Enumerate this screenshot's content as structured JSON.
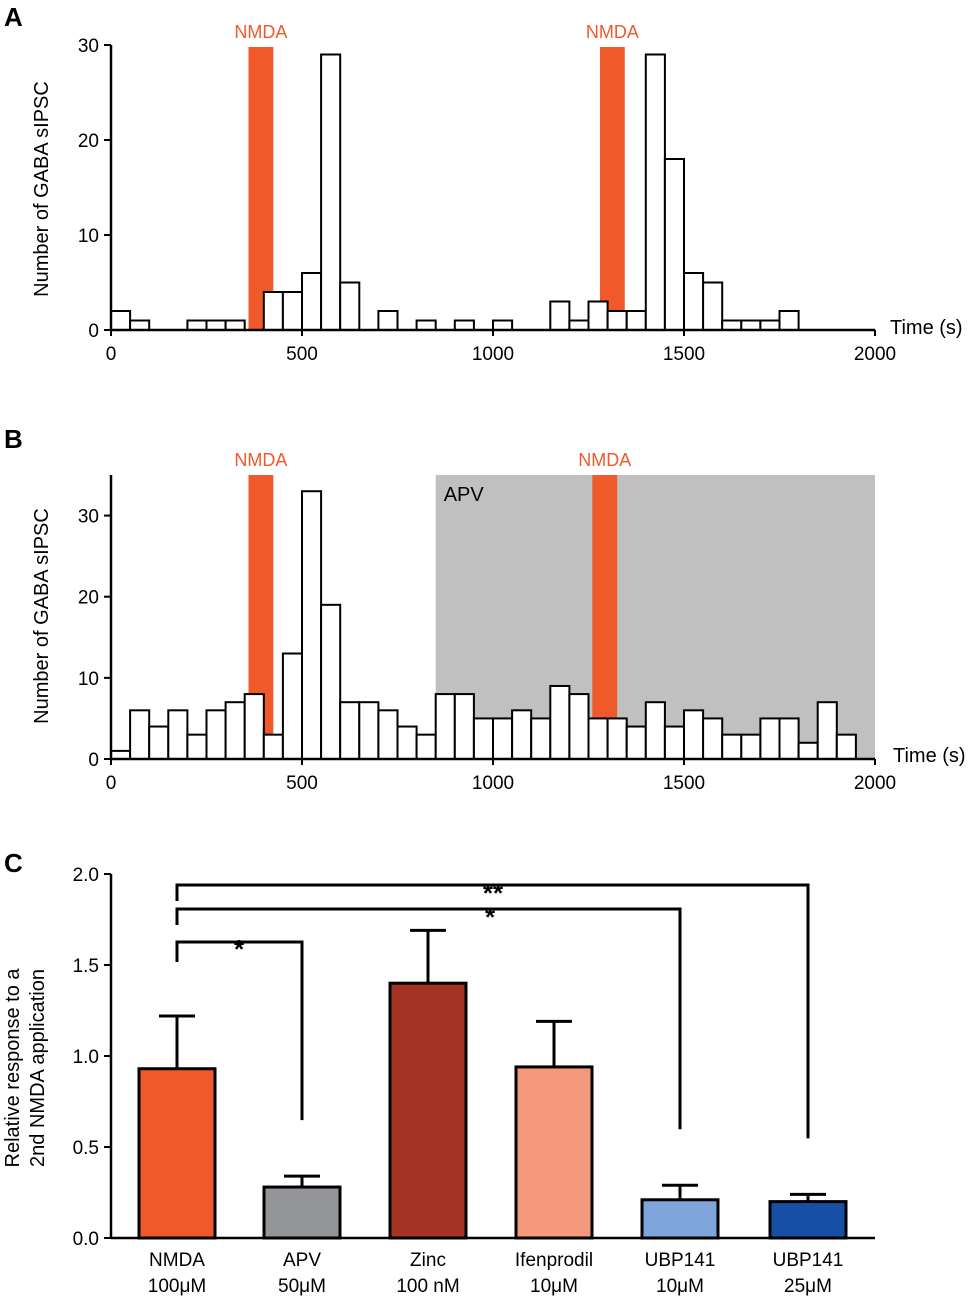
{
  "colors": {
    "nmda": "#f05a2a",
    "apv_region": "#c0c0c0",
    "bar_outline": "#000000"
  },
  "chart_data": [
    {
      "panel": "A",
      "type": "bar",
      "xlabel": "Time (s)",
      "ylabel": "Number of GABA sIPSC",
      "xlim": [
        0,
        2000
      ],
      "ylim": [
        0,
        30
      ],
      "xticks": [
        0,
        500,
        1000,
        1500,
        2000
      ],
      "yticks": [
        0,
        10,
        20,
        30
      ],
      "bin_width": 50,
      "bins": [
        {
          "x": 0,
          "value": 2
        },
        {
          "x": 50,
          "value": 1
        },
        {
          "x": 200,
          "value": 1
        },
        {
          "x": 250,
          "value": 1
        },
        {
          "x": 300,
          "value": 1
        },
        {
          "x": 400,
          "value": 4
        },
        {
          "x": 450,
          "value": 4
        },
        {
          "x": 500,
          "value": 6
        },
        {
          "x": 550,
          "value": 29
        },
        {
          "x": 600,
          "value": 5
        },
        {
          "x": 700,
          "value": 2
        },
        {
          "x": 800,
          "value": 1
        },
        {
          "x": 900,
          "value": 1
        },
        {
          "x": 1000,
          "value": 1
        },
        {
          "x": 1150,
          "value": 3
        },
        {
          "x": 1200,
          "value": 1
        },
        {
          "x": 1250,
          "value": 3
        },
        {
          "x": 1300,
          "value": 2
        },
        {
          "x": 1350,
          "value": 2
        },
        {
          "x": 1400,
          "value": 29
        },
        {
          "x": 1450,
          "value": 18
        },
        {
          "x": 1500,
          "value": 6
        },
        {
          "x": 1550,
          "value": 5
        },
        {
          "x": 1600,
          "value": 1
        },
        {
          "x": 1650,
          "value": 1
        },
        {
          "x": 1700,
          "value": 1
        },
        {
          "x": 1750,
          "value": 2
        }
      ],
      "applications": [
        {
          "label": "NMDA",
          "start": 360,
          "end": 425
        },
        {
          "label": "NMDA",
          "start": 1280,
          "end": 1345
        }
      ]
    },
    {
      "panel": "B",
      "type": "bar",
      "xlabel": "Time (s)",
      "ylabel": "Number of GABA sIPSC",
      "xlim": [
        0,
        2000
      ],
      "ylim": [
        0,
        35
      ],
      "xticks": [
        0,
        500,
        1000,
        1500,
        2000
      ],
      "yticks": [
        0,
        10,
        20,
        30
      ],
      "bin_width": 50,
      "values": [
        1,
        6,
        4,
        6,
        3,
        6,
        7,
        8,
        3,
        13,
        33,
        19,
        7,
        7,
        6,
        4,
        3,
        8,
        8,
        5,
        5,
        6,
        5,
        9,
        8,
        5,
        5,
        4,
        7,
        4,
        6,
        5,
        3,
        3,
        5,
        5,
        2,
        7,
        3
      ],
      "applications": [
        {
          "label": "NMDA",
          "start": 360,
          "end": 425
        },
        {
          "label": "NMDA",
          "start": 1260,
          "end": 1325
        }
      ],
      "region": {
        "label": "APV",
        "start": 850,
        "end": 2000
      }
    },
    {
      "panel": "C",
      "type": "bar",
      "ylabel_lines": [
        "Relative response to a",
        "2nd NMDA application"
      ],
      "ylim": [
        0,
        2.0
      ],
      "yticks": [
        "0.0",
        "0.5",
        "1.0",
        "1.5",
        "2.0"
      ],
      "categories": [
        {
          "line1": "NMDA",
          "line2": "100μM",
          "value": 0.93,
          "error": 0.29,
          "color": "#f05a2a"
        },
        {
          "line1": "APV",
          "line2": "50μM",
          "value": 0.28,
          "error": 0.06,
          "color": "#939598"
        },
        {
          "line1": "Zinc",
          "line2": "100 nM",
          "value": 1.4,
          "error": 0.29,
          "color": "#a53324"
        },
        {
          "line1": "Ifenprodil",
          "line2": "10μM",
          "value": 0.94,
          "error": 0.25,
          "color": "#f5997c"
        },
        {
          "line1": "UBP141",
          "line2": "10μM",
          "value": 0.21,
          "error": 0.08,
          "color": "#7fa6da"
        },
        {
          "line1": "UBP141",
          "line2": "25μM",
          "value": 0.2,
          "error": 0.04,
          "color": "#174ea6"
        }
      ],
      "significance": [
        {
          "from": 0,
          "to": 1,
          "label": "*"
        },
        {
          "from": 0,
          "to": 4,
          "label": "*"
        },
        {
          "from": 0,
          "to": 5,
          "label": "**"
        }
      ]
    }
  ]
}
